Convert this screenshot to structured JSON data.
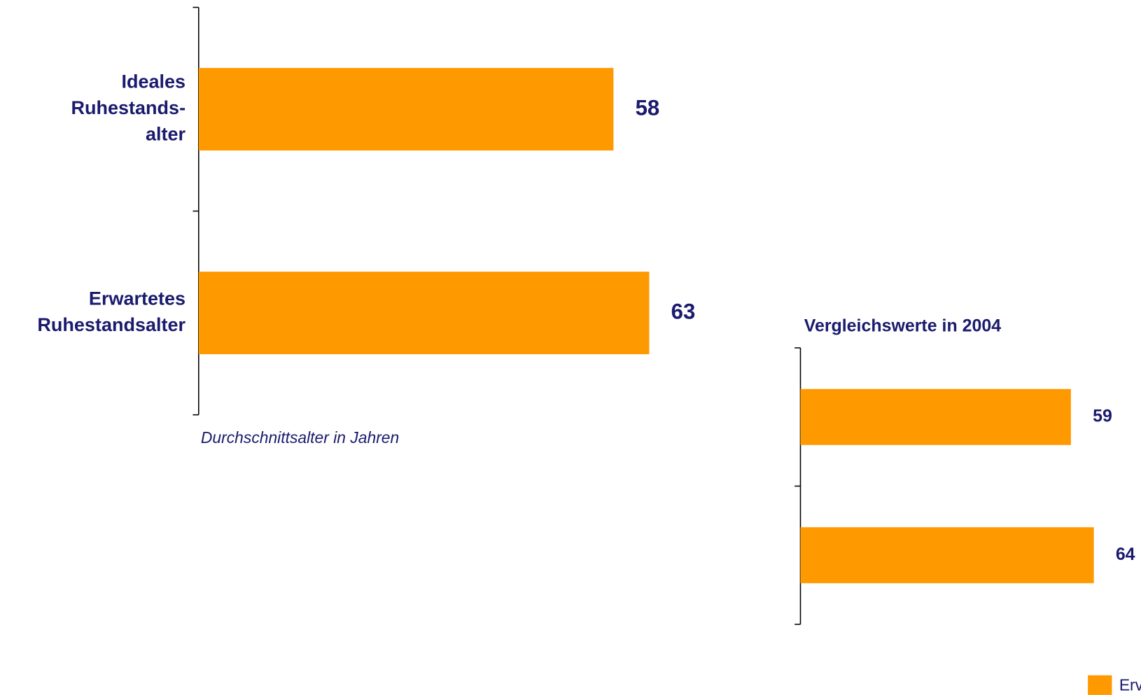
{
  "chart_data": [
    {
      "type": "bar",
      "orientation": "horizontal",
      "categories": [
        "Ideales\nRuhestands-\nalter",
        "Erwartetes\nRuhestandsalter"
      ],
      "values": [
        58,
        63
      ],
      "color": "#ff9900",
      "xlim": [
        0,
        70
      ],
      "xlabel": "Durchschnittsalter in Jahren"
    },
    {
      "type": "bar",
      "orientation": "horizontal",
      "title": "Vergleichswerte in 2004",
      "categories": [
        null,
        null
      ],
      "values": [
        59,
        64
      ],
      "color": "#ff9900",
      "xlim": [
        0,
        70
      ]
    }
  ],
  "legend": {
    "label": "Erv",
    "color": "#ff9900"
  }
}
